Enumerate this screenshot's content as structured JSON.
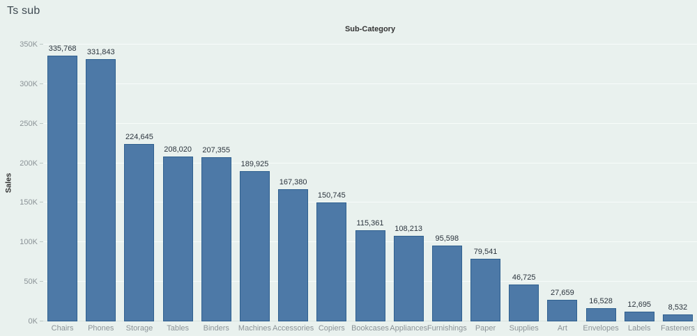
{
  "window": {
    "title": "Ts sub"
  },
  "chart_data": {
    "type": "bar",
    "title": "Sub-Category",
    "xlabel": "",
    "ylabel": "Sales",
    "categories": [
      "Chairs",
      "Phones",
      "Storage",
      "Tables",
      "Binders",
      "Machines",
      "Accessories",
      "Copiers",
      "Bookcases",
      "Appliances",
      "Furnishings",
      "Paper",
      "Supplies",
      "Art",
      "Envelopes",
      "Labels",
      "Fasteners"
    ],
    "values": [
      335768,
      331843,
      224645,
      208020,
      207355,
      189925,
      167380,
      150745,
      115361,
      108213,
      95598,
      79541,
      46725,
      27659,
      16528,
      12695,
      8532
    ],
    "value_labels": [
      "335,768",
      "331,843",
      "224,645",
      "208,020",
      "207,355",
      "189,925",
      "167,380",
      "150,745",
      "115,361",
      "108,213",
      "95,598",
      "79,541",
      "46,725",
      "27,659",
      "16,528",
      "12,695",
      "8,532"
    ],
    "y_ticks": [
      {
        "value": 0,
        "label": "0K"
      },
      {
        "value": 50000,
        "label": "50K"
      },
      {
        "value": 100000,
        "label": "100K"
      },
      {
        "value": 150000,
        "label": "150K"
      },
      {
        "value": 200000,
        "label": "200K"
      },
      {
        "value": 250000,
        "label": "250K"
      },
      {
        "value": 300000,
        "label": "300K"
      },
      {
        "value": 350000,
        "label": "350K"
      }
    ],
    "ylim": [
      0,
      350000
    ],
    "grid": true,
    "legend": "none",
    "colors": {
      "background": "#e9f1ee",
      "bar_fill": "#4d79a7",
      "bar_border": "#2f608f",
      "gridline": "#f7fcfa",
      "tick_label": "#8a9296",
      "value_label": "#2a333c",
      "axis_title": "#333333"
    }
  }
}
